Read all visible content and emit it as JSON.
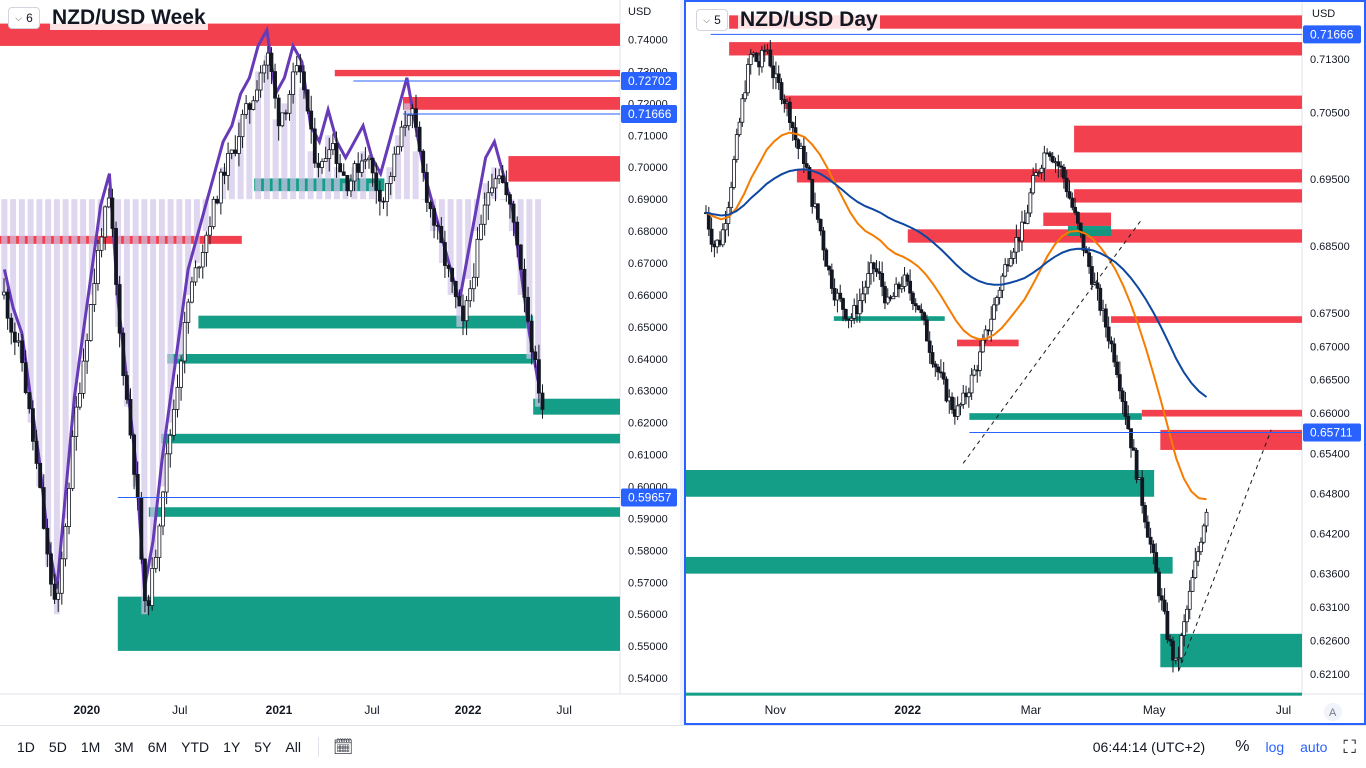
{
  "colors": {
    "bull": "#131722",
    "bear": "#131722",
    "supply": "#f23645",
    "demand": "#089981",
    "hline": "#2962ff",
    "ema_fast": "#f57c00",
    "ema_slow": "#0d47a1",
    "cloud": "#d1c4e9",
    "cloud_line": "#673ab7"
  },
  "left": {
    "interval": "6",
    "title": "NZD/USD Week",
    "unit": "USD",
    "price_ticks": [
      "0.74000",
      "0.73000",
      "0.72000",
      "0.71000",
      "0.70000",
      "0.69000",
      "0.68000",
      "0.67000",
      "0.66000",
      "0.65000",
      "0.64000",
      "0.63000",
      "0.62000",
      "0.61000",
      "0.60000",
      "0.59000",
      "0.58000",
      "0.57000",
      "0.56000",
      "0.55000",
      "0.54000"
    ],
    "time_ticks": [
      "2020",
      "Jul",
      "2021",
      "Jul",
      "2022",
      "Jul"
    ],
    "price_labels": [
      "0.72702",
      "0.71666",
      "0.59657"
    ]
  },
  "right": {
    "interval": "5",
    "title": "NZD/USD Day",
    "unit": "USD",
    "price_ticks": [
      "0.71300",
      "0.70500",
      "0.69500",
      "0.68500",
      "0.67500",
      "0.67000",
      "0.66500",
      "0.66000",
      "0.65400",
      "0.64800",
      "0.64200",
      "0.63600",
      "0.63100",
      "0.62600",
      "0.62100"
    ],
    "time_ticks": [
      "Nov",
      "2022",
      "Mar",
      "May",
      "Jul"
    ],
    "price_labels": [
      "0.71666",
      "0.65711"
    ],
    "axis_mode_label": "A"
  },
  "chart_data": [
    {
      "type": "candlestick",
      "title": "NZD/USD Week",
      "ylim": [
        0.535,
        0.748
      ],
      "x_ticks": [
        "2020",
        "Jul",
        "2021",
        "Jul",
        "2022",
        "Jul"
      ],
      "key_levels": [
        0.72702,
        0.71666,
        0.59657
      ],
      "price_path": [
        0.66,
        0.648,
        0.64,
        0.62,
        0.6,
        0.575,
        0.56,
        0.59,
        0.62,
        0.64,
        0.66,
        0.68,
        0.69,
        0.65,
        0.625,
        0.6,
        0.56,
        0.575,
        0.6,
        0.62,
        0.64,
        0.66,
        0.67,
        0.68,
        0.69,
        0.7,
        0.705,
        0.715,
        0.72,
        0.73,
        0.735,
        0.715,
        0.72,
        0.73,
        0.725,
        0.705,
        0.7,
        0.71,
        0.7,
        0.695,
        0.7,
        0.705,
        0.695,
        0.69,
        0.7,
        0.71,
        0.72,
        0.705,
        0.69,
        0.68,
        0.67,
        0.66,
        0.65,
        0.665,
        0.68,
        0.695,
        0.7,
        0.69,
        0.68,
        0.66,
        0.64,
        0.625
      ]
    },
    {
      "type": "candlestick",
      "title": "NZD/USD Day",
      "ylim": [
        0.618,
        0.72
      ],
      "x_ticks": [
        "Nov",
        "2022",
        "Mar",
        "May",
        "Jul"
      ],
      "key_levels": [
        0.71666,
        0.65711
      ],
      "series": [
        {
          "name": "EMA fast"
        },
        {
          "name": "EMA slow"
        }
      ],
      "price_path": [
        0.69,
        0.685,
        0.686,
        0.692,
        0.7,
        0.708,
        0.714,
        0.712,
        0.715,
        0.71,
        0.708,
        0.705,
        0.7,
        0.698,
        0.692,
        0.688,
        0.682,
        0.678,
        0.676,
        0.674,
        0.676,
        0.679,
        0.682,
        0.68,
        0.676,
        0.678,
        0.68,
        0.678,
        0.676,
        0.672,
        0.668,
        0.665,
        0.662,
        0.66,
        0.662,
        0.665,
        0.668,
        0.672,
        0.676,
        0.68,
        0.684,
        0.686,
        0.688,
        0.694,
        0.697,
        0.7,
        0.698,
        0.696,
        0.692,
        0.688,
        0.684,
        0.68,
        0.676,
        0.672,
        0.668,
        0.662,
        0.656,
        0.65,
        0.644,
        0.638,
        0.632,
        0.626,
        0.622,
        0.628,
        0.634,
        0.64,
        0.646
      ]
    }
  ],
  "bottom": {
    "ranges": [
      "1D",
      "5D",
      "1M",
      "3M",
      "6M",
      "YTD",
      "1Y",
      "5Y",
      "All"
    ],
    "clock": "06:44:14 (UTC+2)",
    "percent": "%",
    "log": "log",
    "auto": "auto"
  }
}
